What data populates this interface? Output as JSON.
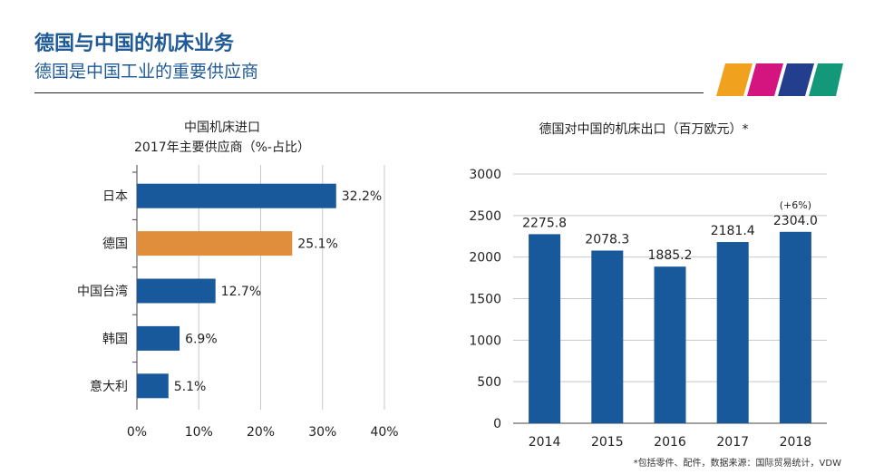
{
  "header": {
    "title": "德国与中国的机床业务",
    "subtitle": "德国是中国工业的重要供应商"
  },
  "colors": {
    "primary_blue": "#17599a",
    "highlight_orange": "#e08e3b",
    "logo_orange": "#f0a11e",
    "logo_magenta": "#d4147f",
    "logo_navy": "#233e8c",
    "logo_teal": "#14987a"
  },
  "left_chart": {
    "title_line1": "中国机床进口",
    "title_line2": "2017年主要供应商（%-占比）"
  },
  "right_chart": {
    "title": "德国对中国的机床出口（百万欧元）*",
    "growth_note": "(+6%)"
  },
  "footnote": "*包括零件、配件，数据来源：国际贸易统计，VDW",
  "chart_data": [
    {
      "type": "bar",
      "orientation": "horizontal",
      "title": "中国机床进口 2017年主要供应商（%-占比）",
      "categories": [
        "日本",
        "德国",
        "中国台湾",
        "韩国",
        "意大利"
      ],
      "values": [
        32.2,
        25.1,
        12.7,
        6.9,
        5.1
      ],
      "value_labels": [
        "32.2%",
        "25.1%",
        "12.7%",
        "6.9%",
        "5.1%"
      ],
      "highlight_index": 1,
      "xlim": [
        0,
        40
      ],
      "xticks": [
        "0%",
        "10%",
        "20%",
        "30%",
        "40%"
      ],
      "grid": "vertical"
    },
    {
      "type": "bar",
      "orientation": "vertical",
      "title": "德国对中国的机床出口（百万欧元）*",
      "categories": [
        "2014",
        "2015",
        "2016",
        "2017",
        "2018"
      ],
      "values": [
        2275.8,
        2078.3,
        1885.2,
        2181.4,
        2304.0
      ],
      "value_labels": [
        "2275.8",
        "2078.3",
        "1885.2",
        "2181.4",
        "2304.0"
      ],
      "ylim": [
        0,
        3000
      ],
      "yticks": [
        "0",
        "500",
        "1000",
        "1500",
        "2000",
        "2500",
        "3000"
      ],
      "grid": "horizontal"
    }
  ]
}
